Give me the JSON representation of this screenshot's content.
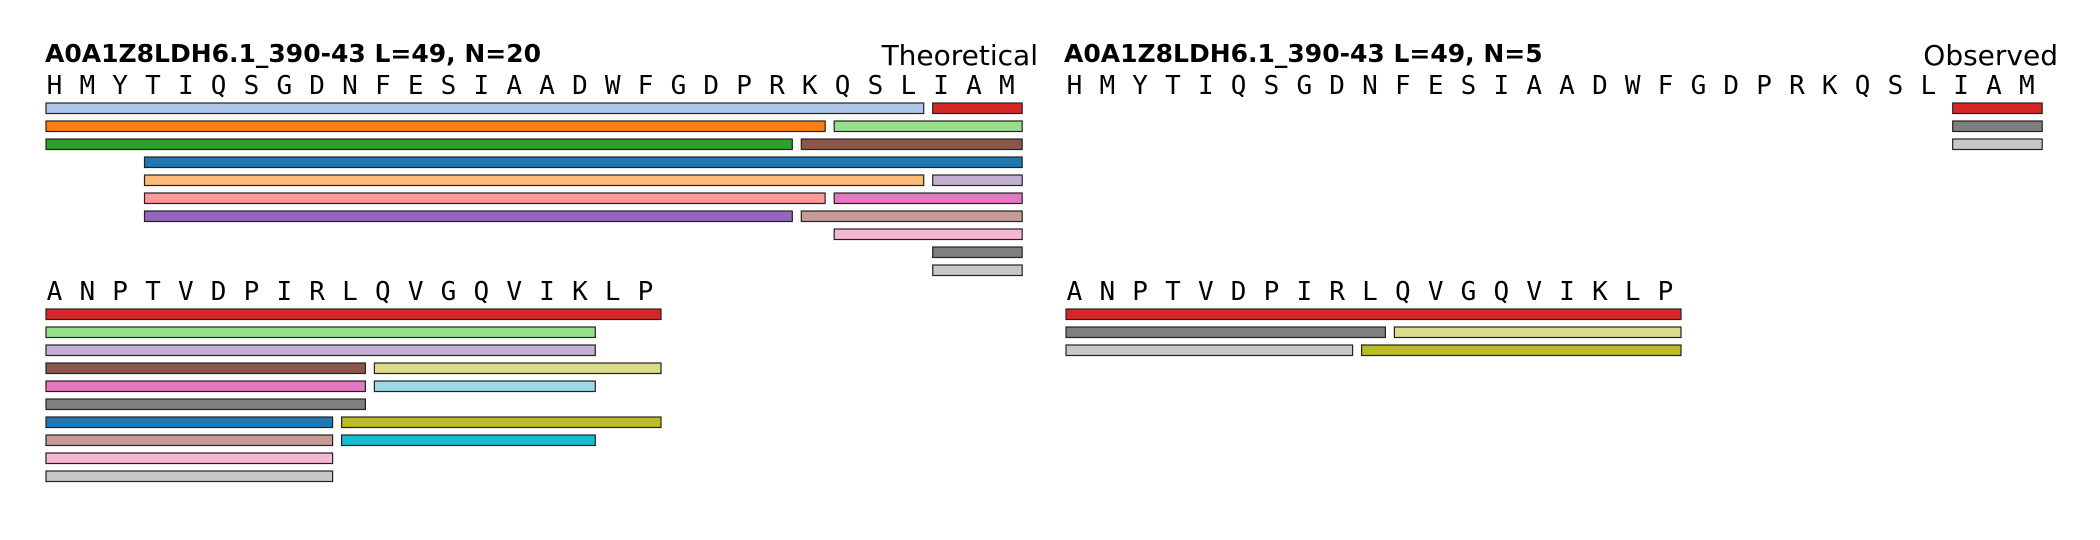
{
  "panels": [
    {
      "id": "theoretical",
      "title": "A0A1Z8LDH6.1_390-43  L=49, N=20",
      "label": "Theoretical",
      "rows": [
        {
          "sequence": [
            "H",
            "M",
            "Y",
            "T",
            "I",
            "Q",
            "S",
            "G",
            "D",
            "N",
            "F",
            "E",
            "S",
            "I",
            "A",
            "A",
            "D",
            "W",
            "F",
            "G",
            "D",
            "P",
            "R",
            "K",
            "Q",
            "S",
            "L",
            "I",
            "A",
            "M"
          ],
          "peptides": [
            {
              "start": 0,
              "end": 26,
              "lane": 0,
              "color": "#aec7e8"
            },
            {
              "start": 27,
              "end": 29,
              "lane": 0,
              "color": "#d62728"
            },
            {
              "start": 0,
              "end": 23,
              "lane": 1,
              "color": "#ff7f0e"
            },
            {
              "start": 24,
              "end": 29,
              "lane": 1,
              "color": "#98df8a"
            },
            {
              "start": 0,
              "end": 22,
              "lane": 2,
              "color": "#2ca02c"
            },
            {
              "start": 23,
              "end": 29,
              "lane": 2,
              "color": "#8c564b"
            },
            {
              "start": 3,
              "end": 29,
              "lane": 3,
              "color": "#1f77b4"
            },
            {
              "start": 3,
              "end": 26,
              "lane": 4,
              "color": "#ffbb78"
            },
            {
              "start": 27,
              "end": 29,
              "lane": 4,
              "color": "#c5b0d5"
            },
            {
              "start": 3,
              "end": 23,
              "lane": 5,
              "color": "#ff9896"
            },
            {
              "start": 24,
              "end": 29,
              "lane": 5,
              "color": "#e377c2"
            },
            {
              "start": 3,
              "end": 22,
              "lane": 6,
              "color": "#9467bd"
            },
            {
              "start": 23,
              "end": 29,
              "lane": 6,
              "color": "#c49c94"
            },
            {
              "start": 24,
              "end": 29,
              "lane": 7,
              "color": "#f7b6d2"
            },
            {
              "start": 27,
              "end": 29,
              "lane": 8,
              "color": "#7f7f7f"
            },
            {
              "start": 27,
              "end": 29,
              "lane": 9,
              "color": "#c7c7c7"
            }
          ]
        },
        {
          "sequence": [
            "A",
            "N",
            "P",
            "T",
            "V",
            "D",
            "P",
            "I",
            "R",
            "L",
            "Q",
            "V",
            "G",
            "Q",
            "V",
            "I",
            "K",
            "L",
            "P"
          ],
          "peptides": [
            {
              "start": 0,
              "end": 18,
              "lane": 0,
              "color": "#d62728"
            },
            {
              "start": 0,
              "end": 16,
              "lane": 1,
              "color": "#98df8a"
            },
            {
              "start": 0,
              "end": 16,
              "lane": 2,
              "color": "#c5b0d5"
            },
            {
              "start": 0,
              "end": 9,
              "lane": 3,
              "color": "#8c564b"
            },
            {
              "start": 10,
              "end": 18,
              "lane": 3,
              "color": "#dbdb8d"
            },
            {
              "start": 0,
              "end": 9,
              "lane": 4,
              "color": "#e377c2"
            },
            {
              "start": 10,
              "end": 16,
              "lane": 4,
              "color": "#9edae5"
            },
            {
              "start": 0,
              "end": 9,
              "lane": 5,
              "color": "#7f7f7f"
            },
            {
              "start": 0,
              "end": 8,
              "lane": 6,
              "color": "#1f77b4"
            },
            {
              "start": 9,
              "end": 18,
              "lane": 6,
              "color": "#bcbd22"
            },
            {
              "start": 0,
              "end": 8,
              "lane": 7,
              "color": "#c49c94"
            },
            {
              "start": 9,
              "end": 16,
              "lane": 7,
              "color": "#17becf"
            },
            {
              "start": 0,
              "end": 8,
              "lane": 8,
              "color": "#f7b6d2"
            },
            {
              "start": 0,
              "end": 8,
              "lane": 9,
              "color": "#c7c7c7"
            }
          ]
        }
      ]
    },
    {
      "id": "observed",
      "title": "A0A1Z8LDH6.1_390-43  L=49, N=5",
      "label": "Observed",
      "rows": [
        {
          "sequence": [
            "H",
            "M",
            "Y",
            "T",
            "I",
            "Q",
            "S",
            "G",
            "D",
            "N",
            "F",
            "E",
            "S",
            "I",
            "A",
            "A",
            "D",
            "W",
            "F",
            "G",
            "D",
            "P",
            "R",
            "K",
            "Q",
            "S",
            "L",
            "I",
            "A",
            "M"
          ],
          "peptides": [
            {
              "start": 27,
              "end": 29,
              "lane": 0,
              "color": "#d62728"
            },
            {
              "start": 27,
              "end": 29,
              "lane": 1,
              "color": "#7f7f7f"
            },
            {
              "start": 27,
              "end": 29,
              "lane": 2,
              "color": "#c7c7c7"
            }
          ]
        },
        {
          "sequence": [
            "A",
            "N",
            "P",
            "T",
            "V",
            "D",
            "P",
            "I",
            "R",
            "L",
            "Q",
            "V",
            "G",
            "Q",
            "V",
            "I",
            "K",
            "L",
            "P"
          ],
          "peptides": [
            {
              "start": 0,
              "end": 18,
              "lane": 0,
              "color": "#d62728"
            },
            {
              "start": 0,
              "end": 9,
              "lane": 1,
              "color": "#7f7f7f"
            },
            {
              "start": 10,
              "end": 18,
              "lane": 1,
              "color": "#dbdb8d"
            },
            {
              "start": 0,
              "end": 8,
              "lane": 2,
              "color": "#c7c7c7"
            },
            {
              "start": 9,
              "end": 18,
              "lane": 2,
              "color": "#bcbd22"
            }
          ]
        }
      ]
    }
  ]
}
